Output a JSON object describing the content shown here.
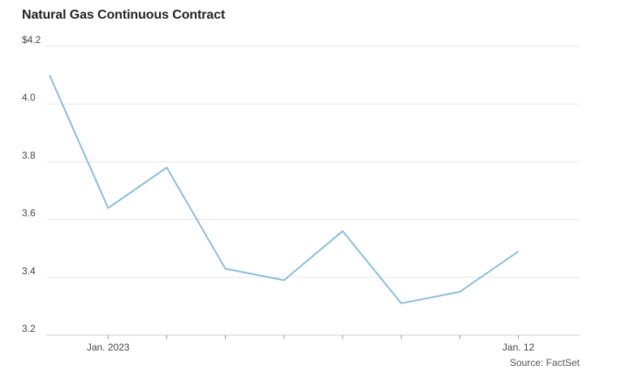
{
  "chart_data": {
    "type": "line",
    "title": "Natural Gas Continuous Contract",
    "source": "Source: FactSet",
    "xlabel": "",
    "ylabel": "",
    "ylim": [
      3.2,
      4.2
    ],
    "y_ticks": [
      {
        "value": 4.2,
        "label": "$4.2"
      },
      {
        "value": 4.0,
        "label": "4.0"
      },
      {
        "value": 3.8,
        "label": "3.8"
      },
      {
        "value": 3.6,
        "label": "3.6"
      },
      {
        "value": 3.4,
        "label": "3.4"
      },
      {
        "value": 3.2,
        "label": "3.2"
      }
    ],
    "x_labels": [
      "Jan. 2023",
      "Jan. 12"
    ],
    "x": [
      "",
      "Jan. 2023",
      "",
      "",
      "",
      "",
      "",
      "",
      "Jan. 12"
    ],
    "series": [
      {
        "values": [
          4.1,
          3.64,
          3.78,
          3.43,
          3.39,
          3.56,
          3.31,
          3.35,
          3.49
        ],
        "color": "#8bbcd9"
      }
    ],
    "grid": true,
    "legend": "none"
  }
}
